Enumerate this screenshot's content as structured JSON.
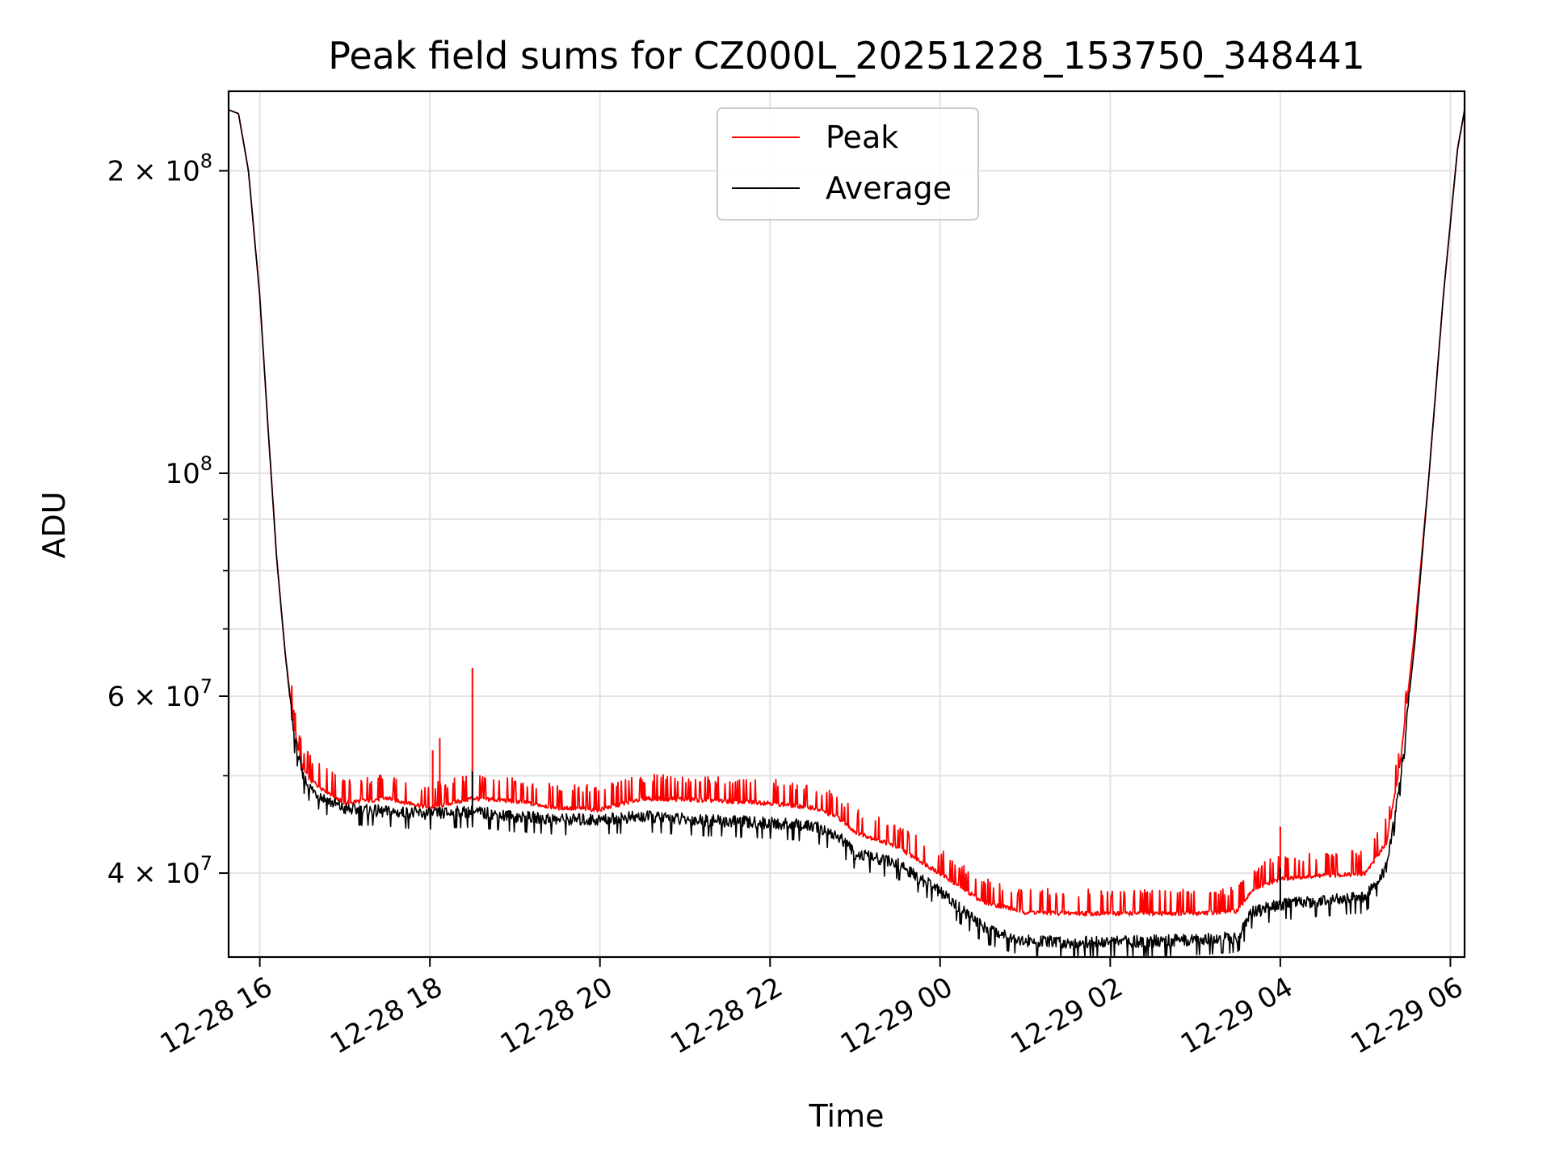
{
  "chart_data": {
    "type": "line",
    "title": "Peak field sums for CZ000L_20251228_153750_348441",
    "xlabel": "Time",
    "ylabel": "ADU",
    "y_scale": "log",
    "ylim": [
      33000000,
      240000000
    ],
    "xlim": [
      "2025-12-28 15:38",
      "2025-12-29 06:10"
    ],
    "x_ticks": [
      "2025-12-28 16:00",
      "2025-12-28 18:00",
      "2025-12-28 20:00",
      "2025-12-28 22:00",
      "2025-12-29 00:00",
      "2025-12-29 02:00",
      "2025-12-29 04:00",
      "2025-12-29 06:00"
    ],
    "x_tick_labels": [
      "12-28 16",
      "12-28 18",
      "12-28 20",
      "12-28 22",
      "12-29 00",
      "12-29 02",
      "12-29 04",
      "12-29 06"
    ],
    "y_ticks": [
      {
        "value": 200000000,
        "mantissa": "2",
        "exponent": "8"
      },
      {
        "value": 100000000,
        "mantissa": "",
        "exponent": "8"
      },
      {
        "value": 60000000,
        "mantissa": "6",
        "exponent": "7"
      },
      {
        "value": 40000000,
        "mantissa": "4",
        "exponent": "7"
      }
    ],
    "y_minor_ticks": [
      90000000,
      80000000,
      70000000,
      50000000
    ],
    "grid": true,
    "legend_position": "top-center",
    "series": [
      {
        "name": "Peak",
        "color": "#ff0000",
        "x": [
          "2025-12-28 15:38",
          "2025-12-28 15:45",
          "2025-12-28 15:52",
          "2025-12-28 16:00",
          "2025-12-28 16:06",
          "2025-12-28 16:12",
          "2025-12-28 16:18",
          "2025-12-28 16:24",
          "2025-12-28 16:30",
          "2025-12-28 16:36",
          "2025-12-28 16:45",
          "2025-12-28 17:00",
          "2025-12-28 17:30",
          "2025-12-28 18:00",
          "2025-12-28 18:30",
          "2025-12-28 19:00",
          "2025-12-28 19:30",
          "2025-12-28 20:00",
          "2025-12-28 20:30",
          "2025-12-28 21:00",
          "2025-12-28 21:30",
          "2025-12-28 22:00",
          "2025-12-28 22:30",
          "2025-12-28 22:48",
          "2025-12-28 23:00",
          "2025-12-28 23:30",
          "2025-12-29 00:00",
          "2025-12-29 00:30",
          "2025-12-29 01:00",
          "2025-12-29 01:30",
          "2025-12-29 02:00",
          "2025-12-29 02:30",
          "2025-12-29 03:00",
          "2025-12-29 03:30",
          "2025-12-29 03:40",
          "2025-12-29 04:00",
          "2025-12-29 04:30",
          "2025-12-29 05:00",
          "2025-12-29 05:15",
          "2025-12-29 05:25",
          "2025-12-29 05:35",
          "2025-12-29 05:45",
          "2025-12-29 05:55",
          "2025-12-29 06:05",
          "2025-12-29 06:10"
        ],
        "values": [
          230000000,
          228000000,
          200000000,
          150000000,
          110000000,
          82000000,
          66000000,
          56000000,
          51000000,
          49500000,
          48500000,
          47000000,
          47500000,
          46500000,
          47500000,
          47200000,
          46500000,
          46300000,
          47500000,
          47400000,
          47200000,
          47000000,
          46500000,
          45500000,
          44000000,
          42500000,
          40000000,
          37500000,
          36600000,
          36500000,
          36500000,
          36500000,
          36500000,
          36700000,
          38500000,
          39500000,
          39800000,
          40000000,
          43000000,
          52000000,
          70000000,
          100000000,
          150000000,
          210000000,
          230000000
        ],
        "spikes": [
          {
            "x": "2025-12-28 18:02",
            "value": 53000000
          },
          {
            "x": "2025-12-28 18:07",
            "value": 54500000
          },
          {
            "x": "2025-12-28 18:30",
            "value": 64000000
          },
          {
            "x": "2025-12-29 04:00",
            "value": 44500000
          }
        ]
      },
      {
        "name": "Average",
        "color": "#000000",
        "x": [
          "2025-12-28 15:38",
          "2025-12-28 15:45",
          "2025-12-28 15:52",
          "2025-12-28 16:00",
          "2025-12-28 16:06",
          "2025-12-28 16:12",
          "2025-12-28 16:18",
          "2025-12-28 16:24",
          "2025-12-28 16:30",
          "2025-12-28 16:36",
          "2025-12-28 16:45",
          "2025-12-28 17:00",
          "2025-12-28 17:30",
          "2025-12-28 18:00",
          "2025-12-28 18:30",
          "2025-12-28 19:00",
          "2025-12-28 19:30",
          "2025-12-28 20:00",
          "2025-12-28 20:30",
          "2025-12-28 21:00",
          "2025-12-28 21:30",
          "2025-12-28 22:00",
          "2025-12-28 22:30",
          "2025-12-28 22:48",
          "2025-12-28 23:00",
          "2025-12-28 23:30",
          "2025-12-29 00:00",
          "2025-12-29 00:30",
          "2025-12-29 01:00",
          "2025-12-29 01:30",
          "2025-12-29 02:00",
          "2025-12-29 02:30",
          "2025-12-29 03:00",
          "2025-12-29 03:30",
          "2025-12-29 03:40",
          "2025-12-29 04:00",
          "2025-12-29 04:30",
          "2025-12-29 05:00",
          "2025-12-29 05:15",
          "2025-12-29 05:25",
          "2025-12-29 05:35",
          "2025-12-29 05:45",
          "2025-12-29 05:55",
          "2025-12-29 06:05",
          "2025-12-29 06:10"
        ],
        "values": [
          230000000,
          228000000,
          200000000,
          150000000,
          110000000,
          82000000,
          66000000,
          55000000,
          50000000,
          48500000,
          47500000,
          46300000,
          46000000,
          45800000,
          46000000,
          45500000,
          45200000,
          45200000,
          45500000,
          45200000,
          45000000,
          44800000,
          44500000,
          43500000,
          41800000,
          40800000,
          38300000,
          35300000,
          34200000,
          34100000,
          34100000,
          34200000,
          34300000,
          34500000,
          36500000,
          37200000,
          37500000,
          37800000,
          40500000,
          50000000,
          68000000,
          100000000,
          150000000,
          210000000,
          230000000
        ],
        "spikes": [
          {
            "x": "2025-12-28 18:30",
            "value": 50500000
          },
          {
            "x": "2025-12-29 04:00",
            "value": 40500000
          }
        ]
      }
    ]
  }
}
